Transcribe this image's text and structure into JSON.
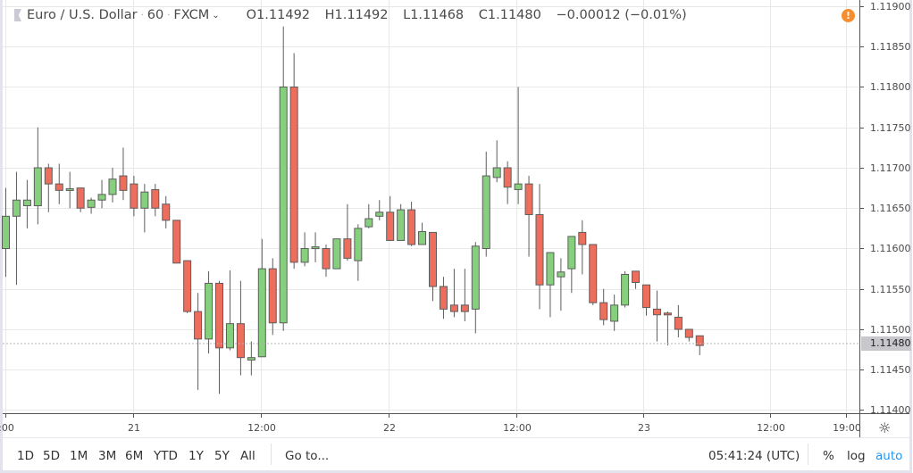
{
  "legend": {
    "symbol": "Euro / U.S. Dollar",
    "interval": "60",
    "exchange": "FXCM",
    "open": "O1.11492",
    "high": "H1.11492",
    "low": "L1.11468",
    "close": "C1.11480",
    "change": "−0.00012 (−0.01%)"
  },
  "alert_icon": "!",
  "price_axis": {
    "labels": [
      "1.11900",
      "1.11850",
      "1.11800",
      "1.11750",
      "1.11700",
      "1.11650",
      "1.11600",
      "1.11550",
      "1.11500",
      "1.11450",
      "1.11400"
    ],
    "current_price": "1.11480"
  },
  "time_axis": {
    "labels": [
      ":00",
      "21",
      "12:00",
      "22",
      "12:00",
      "23",
      "12:00",
      "19:00"
    ]
  },
  "toolbar": {
    "ranges": [
      "1D",
      "5D",
      "1M",
      "3M",
      "6M",
      "YTD",
      "1Y",
      "5Y",
      "All"
    ],
    "goto": "Go to...",
    "clock": "05:41:24 (UTC)",
    "percent": "%",
    "log": "log",
    "auto": "auto"
  },
  "colors": {
    "up": "#86cf7c",
    "down": "#ee6e5e",
    "wick": "#5d5d5d",
    "grid": "#e8e8e8",
    "accent": "#2196f3",
    "alert": "#f68d2e"
  },
  "chart_data": {
    "type": "candlestick",
    "title": "Euro / U.S. Dollar · 60 · FXCM",
    "xlabel": "",
    "ylabel": "",
    "ylim": [
      1.11395,
      1.11905
    ],
    "grid": true,
    "x_ticks": [
      ":00",
      "21",
      "12:00",
      "22",
      "12:00",
      "23",
      "12:00",
      "19:00"
    ],
    "y_ticks": [
      1.119,
      1.1185,
      1.118,
      1.1175,
      1.117,
      1.1165,
      1.116,
      1.1155,
      1.115,
      1.1145,
      1.114
    ],
    "candles": [
      {
        "o": 1.116,
        "h": 1.11675,
        "l": 1.11565,
        "c": 1.1164
      },
      {
        "o": 1.1164,
        "h": 1.11695,
        "l": 1.11555,
        "c": 1.1166
      },
      {
        "o": 1.11653,
        "h": 1.11685,
        "l": 1.11625,
        "c": 1.1166
      },
      {
        "o": 1.11653,
        "h": 1.1175,
        "l": 1.1163,
        "c": 1.117
      },
      {
        "o": 1.117,
        "h": 1.11705,
        "l": 1.11645,
        "c": 1.1168
      },
      {
        "o": 1.1168,
        "h": 1.11705,
        "l": 1.11655,
        "c": 1.11672
      },
      {
        "o": 1.11673,
        "h": 1.11695,
        "l": 1.1165,
        "c": 1.11673
      },
      {
        "o": 1.11675,
        "h": 1.1167,
        "l": 1.11645,
        "c": 1.1165
      },
      {
        "o": 1.11651,
        "h": 1.11663,
        "l": 1.11643,
        "c": 1.1166
      },
      {
        "o": 1.1166,
        "h": 1.11685,
        "l": 1.1165,
        "c": 1.11667
      },
      {
        "o": 1.11667,
        "h": 1.117,
        "l": 1.11657,
        "c": 1.11686
      },
      {
        "o": 1.1169,
        "h": 1.11725,
        "l": 1.1166,
        "c": 1.11672
      },
      {
        "o": 1.1168,
        "h": 1.1169,
        "l": 1.1164,
        "c": 1.1165
      },
      {
        "o": 1.1165,
        "h": 1.1168,
        "l": 1.1162,
        "c": 1.1167
      },
      {
        "o": 1.11673,
        "h": 1.1168,
        "l": 1.1164,
        "c": 1.1165
      },
      {
        "o": 1.11655,
        "h": 1.11665,
        "l": 1.11625,
        "c": 1.11635
      },
      {
        "o": 1.11635,
        "h": 1.11635,
        "l": 1.11582,
        "c": 1.11582
      },
      {
        "o": 1.11585,
        "h": 1.11585,
        "l": 1.1152,
        "c": 1.11522
      },
      {
        "o": 1.11522,
        "h": 1.11545,
        "l": 1.11425,
        "c": 1.11488
      },
      {
        "o": 1.11488,
        "h": 1.11572,
        "l": 1.1147,
        "c": 1.11557
      },
      {
        "o": 1.11557,
        "h": 1.1156,
        "l": 1.1142,
        "c": 1.11477
      },
      {
        "o": 1.11477,
        "h": 1.11573,
        "l": 1.11474,
        "c": 1.11507
      },
      {
        "o": 1.11507,
        "h": 1.1156,
        "l": 1.11443,
        "c": 1.11465
      },
      {
        "o": 1.11462,
        "h": 1.11485,
        "l": 1.11443,
        "c": 1.11465
      },
      {
        "o": 1.11466,
        "h": 1.11612,
        "l": 1.11493,
        "c": 1.11575
      },
      {
        "o": 1.11575,
        "h": 1.11588,
        "l": 1.11493,
        "c": 1.11508
      },
      {
        "o": 1.11508,
        "h": 1.11875,
        "l": 1.11498,
        "c": 1.118
      },
      {
        "o": 1.118,
        "h": 1.11842,
        "l": 1.11575,
        "c": 1.11583
      },
      {
        "o": 1.11583,
        "h": 1.1162,
        "l": 1.11578,
        "c": 1.116
      },
      {
        "o": 1.11601,
        "h": 1.1162,
        "l": 1.11583,
        "c": 1.11601
      },
      {
        "o": 1.116,
        "h": 1.11605,
        "l": 1.11565,
        "c": 1.11575
      },
      {
        "o": 1.11575,
        "h": 1.11605,
        "l": 1.11575,
        "c": 1.11612
      },
      {
        "o": 1.11612,
        "h": 1.11655,
        "l": 1.11585,
        "c": 1.11588
      },
      {
        "o": 1.11585,
        "h": 1.1163,
        "l": 1.1156,
        "c": 1.11625
      },
      {
        "o": 1.11627,
        "h": 1.11655,
        "l": 1.11625,
        "c": 1.11637
      },
      {
        "o": 1.1164,
        "h": 1.1166,
        "l": 1.11635,
        "c": 1.11645
      },
      {
        "o": 1.11645,
        "h": 1.11665,
        "l": 1.11613,
        "c": 1.1161
      },
      {
        "o": 1.1161,
        "h": 1.11655,
        "l": 1.1161,
        "c": 1.11648
      },
      {
        "o": 1.11648,
        "h": 1.11658,
        "l": 1.11603,
        "c": 1.11605
      },
      {
        "o": 1.11605,
        "h": 1.11632,
        "l": 1.11606,
        "c": 1.11621
      },
      {
        "o": 1.1162,
        "h": 1.1162,
        "l": 1.11535,
        "c": 1.11553
      },
      {
        "o": 1.11553,
        "h": 1.11565,
        "l": 1.11513,
        "c": 1.11525
      },
      {
        "o": 1.1153,
        "h": 1.11575,
        "l": 1.11515,
        "c": 1.11522
      },
      {
        "o": 1.1153,
        "h": 1.11575,
        "l": 1.1151,
        "c": 1.11522
      },
      {
        "o": 1.11525,
        "h": 1.11608,
        "l": 1.11495,
        "c": 1.11603
      },
      {
        "o": 1.116,
        "h": 1.1172,
        "l": 1.1159,
        "c": 1.1169
      },
      {
        "o": 1.11688,
        "h": 1.11734,
        "l": 1.11682,
        "c": 1.117
      },
      {
        "o": 1.117,
        "h": 1.11708,
        "l": 1.11655,
        "c": 1.11676
      },
      {
        "o": 1.11673,
        "h": 1.118,
        "l": 1.11655,
        "c": 1.1168
      },
      {
        "o": 1.1168,
        "h": 1.1169,
        "l": 1.1159,
        "c": 1.11642
      },
      {
        "o": 1.11642,
        "h": 1.1168,
        "l": 1.11525,
        "c": 1.11555
      },
      {
        "o": 1.11555,
        "h": 1.1157,
        "l": 1.11515,
        "c": 1.11595
      },
      {
        "o": 1.11565,
        "h": 1.11588,
        "l": 1.11523,
        "c": 1.11571
      },
      {
        "o": 1.11575,
        "h": 1.11615,
        "l": 1.11545,
        "c": 1.11615
      },
      {
        "o": 1.1162,
        "h": 1.11635,
        "l": 1.11568,
        "c": 1.11605
      },
      {
        "o": 1.11605,
        "h": 1.11605,
        "l": 1.1153,
        "c": 1.11533
      },
      {
        "o": 1.11533,
        "h": 1.1155,
        "l": 1.11505,
        "c": 1.11512
      },
      {
        "o": 1.1151,
        "h": 1.11543,
        "l": 1.11498,
        "c": 1.1153
      },
      {
        "o": 1.1153,
        "h": 1.11572,
        "l": 1.11527,
        "c": 1.11568
      },
      {
        "o": 1.11572,
        "h": 1.11572,
        "l": 1.1155,
        "c": 1.11558
      },
      {
        "o": 1.11555,
        "h": 1.11555,
        "l": 1.11517,
        "c": 1.11527
      },
      {
        "o": 1.11525,
        "h": 1.11548,
        "l": 1.11485,
        "c": 1.11518
      },
      {
        "o": 1.1152,
        "h": 1.11522,
        "l": 1.1148,
        "c": 1.11518
      },
      {
        "o": 1.11515,
        "h": 1.1153,
        "l": 1.1149,
        "c": 1.115
      },
      {
        "o": 1.115,
        "h": 1.115,
        "l": 1.11485,
        "c": 1.1149
      },
      {
        "o": 1.11492,
        "h": 1.11492,
        "l": 1.11468,
        "c": 1.1148
      }
    ]
  }
}
